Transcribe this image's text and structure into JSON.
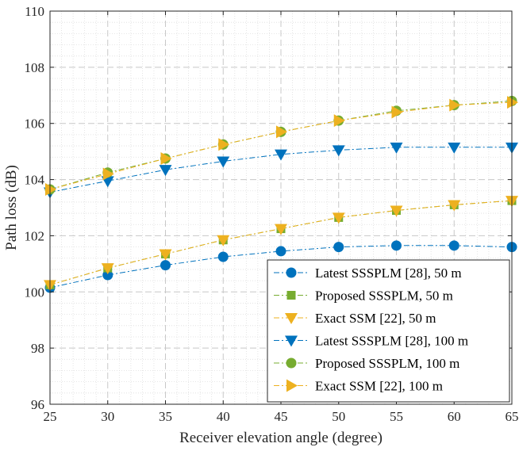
{
  "chart_data": {
    "type": "line",
    "title": "",
    "xlabel": "Receiver elevation angle (degree)",
    "ylabel": "Path loss (dB)",
    "xlim": [
      25,
      65
    ],
    "ylim": [
      96,
      110
    ],
    "x": [
      25,
      30,
      35,
      40,
      45,
      50,
      55,
      60,
      65
    ],
    "xticks": [
      25,
      30,
      35,
      40,
      45,
      50,
      55,
      60,
      65
    ],
    "yticks": [
      96,
      98,
      100,
      102,
      104,
      106,
      108,
      110
    ],
    "grid": true,
    "minor_grid": true,
    "legend_position": "bottom-right",
    "series": [
      {
        "name": "Latest SSSPLM [28], 50 m",
        "color": "#0072BD",
        "marker": "circle",
        "values": [
          100.15,
          100.6,
          100.95,
          101.25,
          101.45,
          101.6,
          101.65,
          101.65,
          101.6
        ]
      },
      {
        "name": "Proposed SSSPLM, 50 m",
        "color": "#77AC30",
        "marker": "square",
        "values": [
          100.25,
          100.85,
          101.35,
          101.85,
          102.25,
          102.65,
          102.9,
          103.1,
          103.25
        ]
      },
      {
        "name": "Exact SSM [22], 50 m",
        "color": "#EDB120",
        "marker": "triangle-down",
        "values": [
          100.25,
          100.85,
          101.35,
          101.85,
          102.25,
          102.65,
          102.9,
          103.1,
          103.25
        ]
      },
      {
        "name": "Latest SSSPLM [28], 100 m",
        "color": "#0072BD",
        "marker": "triangle-down",
        "values": [
          103.55,
          103.95,
          104.35,
          104.65,
          104.9,
          105.05,
          105.15,
          105.15,
          105.15
        ]
      },
      {
        "name": "Proposed SSSPLM, 100 m",
        "color": "#77AC30",
        "marker": "circle",
        "values": [
          103.65,
          104.25,
          104.75,
          105.25,
          105.7,
          106.1,
          106.45,
          106.65,
          106.8
        ]
      },
      {
        "name": "Exact SSM [22], 100 m",
        "color": "#EDB120",
        "marker": "triangle-right",
        "values": [
          103.65,
          104.2,
          104.75,
          105.25,
          105.7,
          106.1,
          106.4,
          106.65,
          106.75
        ]
      }
    ]
  }
}
